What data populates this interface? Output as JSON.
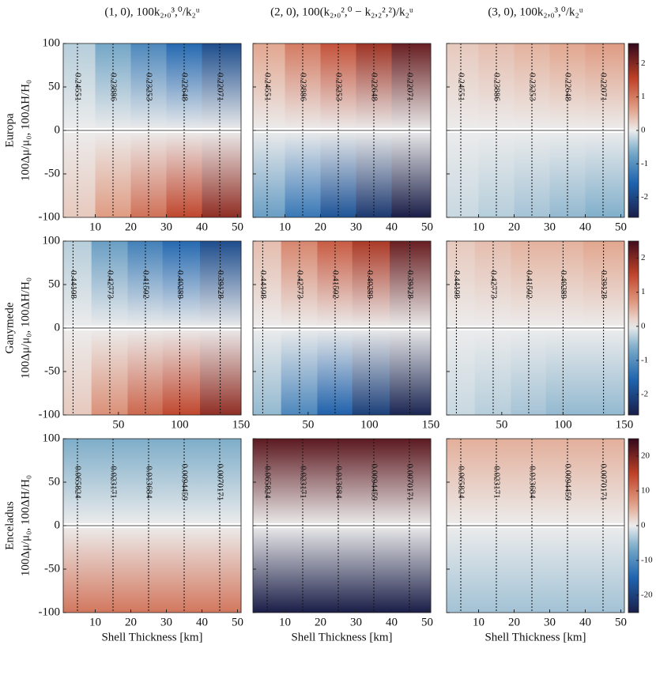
{
  "column_titles": [
    "(1, 0), 100k₂,₀³,⁰/k₂ᵘ",
    "(2, 0), 100(k₂,₀²,⁰ − k₂,₂²,²)/k₂ᵘ",
    "(3, 0), 100k₂,₀³,⁰/k₂ᵘ"
  ],
  "x_label": "Shell Thickness [km]",
  "y_label": "100Δμ/μ₀, 100ΔH/H₀",
  "rows": [
    {
      "name": "Europa",
      "xlim": [
        1,
        51
      ],
      "xticks": [
        10,
        20,
        30,
        40,
        50
      ],
      "ylim": [
        -100,
        100
      ],
      "yticks": [
        -100,
        -50,
        0,
        50,
        100
      ],
      "clim": [
        -2.6,
        2.6
      ],
      "cticks": [
        -2,
        -1,
        0,
        1,
        2
      ],
      "line_x": [
        5,
        15,
        25,
        35,
        45
      ],
      "line_labels": [
        0.24551,
        0.23886,
        0.23253,
        0.22648,
        0.22071
      ],
      "panels": [
        {
          "z_top": [
            -0.3,
            -0.7,
            -1.1,
            -1.5,
            -1.9
          ],
          "z_bottom": [
            0.3,
            0.7,
            1.1,
            1.5,
            1.9
          ]
        },
        {
          "z_top": [
            0.6,
            1.0,
            1.4,
            1.8,
            2.2
          ],
          "z_bottom": [
            -0.8,
            -1.3,
            -1.8,
            -2.2,
            -2.6
          ]
        },
        {
          "z_top": [
            0.3,
            0.4,
            0.5,
            0.6,
            0.7
          ],
          "z_bottom": [
            -0.2,
            -0.3,
            -0.4,
            -0.5,
            -0.6
          ]
        }
      ]
    },
    {
      "name": "Ganymede",
      "xlim": [
        5,
        150
      ],
      "xticks": [
        50,
        100,
        150
      ],
      "ylim": [
        -100,
        100
      ],
      "yticks": [
        -100,
        -50,
        0,
        50,
        100
      ],
      "clim": [
        -2.6,
        2.5
      ],
      "cticks": [
        -2,
        -1,
        0,
        1,
        2
      ],
      "line_x": [
        13,
        43,
        72,
        100,
        133
      ],
      "line_labels": [
        0.44108,
        0.42773,
        0.41502,
        0.40289,
        0.39128
      ],
      "panels": [
        {
          "z_top": [
            -0.3,
            -0.8,
            -1.2,
            -1.5,
            -1.9
          ],
          "z_bottom": [
            0.3,
            0.8,
            1.2,
            1.5,
            1.9
          ]
        },
        {
          "z_top": [
            0.4,
            0.9,
            1.3,
            1.7,
            2.2
          ],
          "z_bottom": [
            -0.5,
            -1.1,
            -1.6,
            -2.1,
            -2.5
          ]
        },
        {
          "z_top": [
            0.3,
            0.4,
            0.5,
            0.5,
            0.6
          ],
          "z_bottom": [
            -0.2,
            -0.3,
            -0.4,
            -0.5,
            -0.5
          ]
        }
      ]
    },
    {
      "name": "Enceladus",
      "xlim": [
        1,
        51
      ],
      "xticks": [
        10,
        20,
        30,
        40,
        50
      ],
      "ylim": [
        -100,
        100
      ],
      "yticks": [
        -100,
        -50,
        0,
        50,
        100
      ],
      "clim": [
        -25,
        25
      ],
      "cticks": [
        -20,
        -10,
        0,
        10,
        20
      ],
      "line_x": [
        5,
        15,
        25,
        35,
        45
      ],
      "line_labels": [
        0.065824,
        0.023171,
        0.013684,
        0.0094459,
        0.0070171
      ],
      "panels": [
        {
          "z_top": [
            -6,
            -6,
            -6,
            -6,
            -6
          ],
          "z_bottom": [
            10,
            10,
            10,
            10,
            10
          ]
        },
        {
          "z_top": [
            22,
            22,
            22,
            22,
            22
          ],
          "z_bottom": [
            -25,
            -25,
            -25,
            -25,
            -25
          ]
        },
        {
          "z_top": [
            5,
            5,
            5,
            5,
            5
          ],
          "z_bottom": [
            -4,
            -4,
            -4,
            -4,
            -4
          ]
        }
      ]
    }
  ]
}
